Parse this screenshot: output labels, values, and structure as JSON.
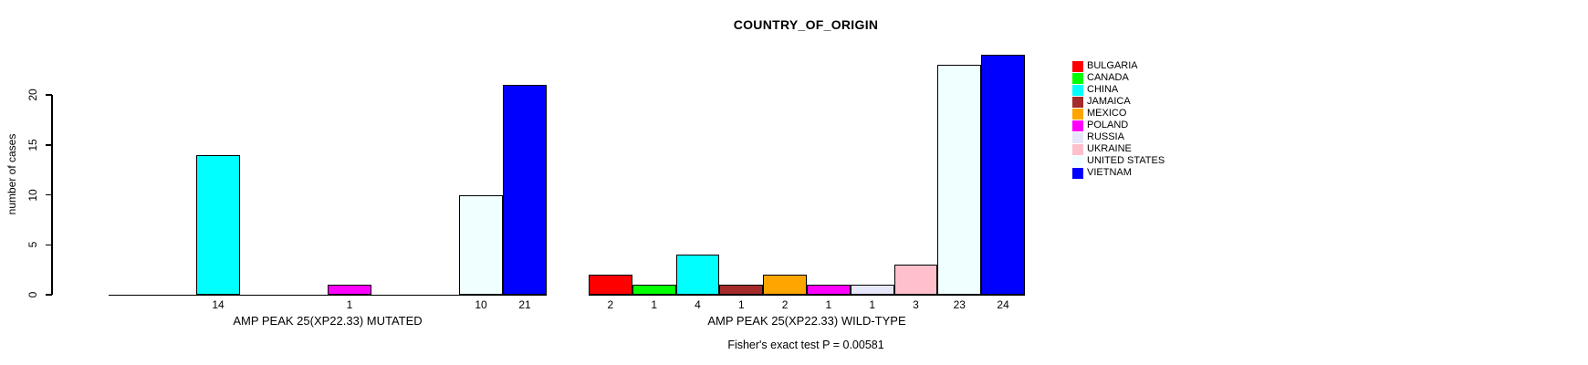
{
  "chart_data": {
    "type": "bar",
    "title": "COUNTRY_OF_ORIGIN",
    "ylabel": "number of cases",
    "ylim": [
      0,
      24
    ],
    "yticks": [
      0,
      5,
      10,
      15,
      20
    ],
    "grid": false,
    "legend_position": "right",
    "categories": [
      "BULGARIA",
      "CANADA",
      "CHINA",
      "JAMAICA",
      "MEXICO",
      "POLAND",
      "RUSSIA",
      "UKRAINE",
      "UNITED STATES",
      "VIETNAM"
    ],
    "colors": [
      "#FF0000",
      "#00FF00",
      "#00FFFF",
      "#A52A2A",
      "#FFA500",
      "#FF00FF",
      "#E6E6FA",
      "#FFC0CB",
      "#F0FFFF",
      "#0000FF"
    ],
    "groups": [
      {
        "label": "AMP PEAK 25(XP22.33) MUTATED",
        "values": [
          0,
          0,
          14,
          0,
          0,
          1,
          0,
          0,
          10,
          21
        ]
      },
      {
        "label": "AMP PEAK 25(XP22.33) WILD-TYPE",
        "values": [
          2,
          1,
          4,
          1,
          2,
          1,
          1,
          3,
          23,
          24
        ]
      }
    ],
    "bar_value_labels_shown": true,
    "annotation": "Fisher's exact test P = 0.00581"
  }
}
